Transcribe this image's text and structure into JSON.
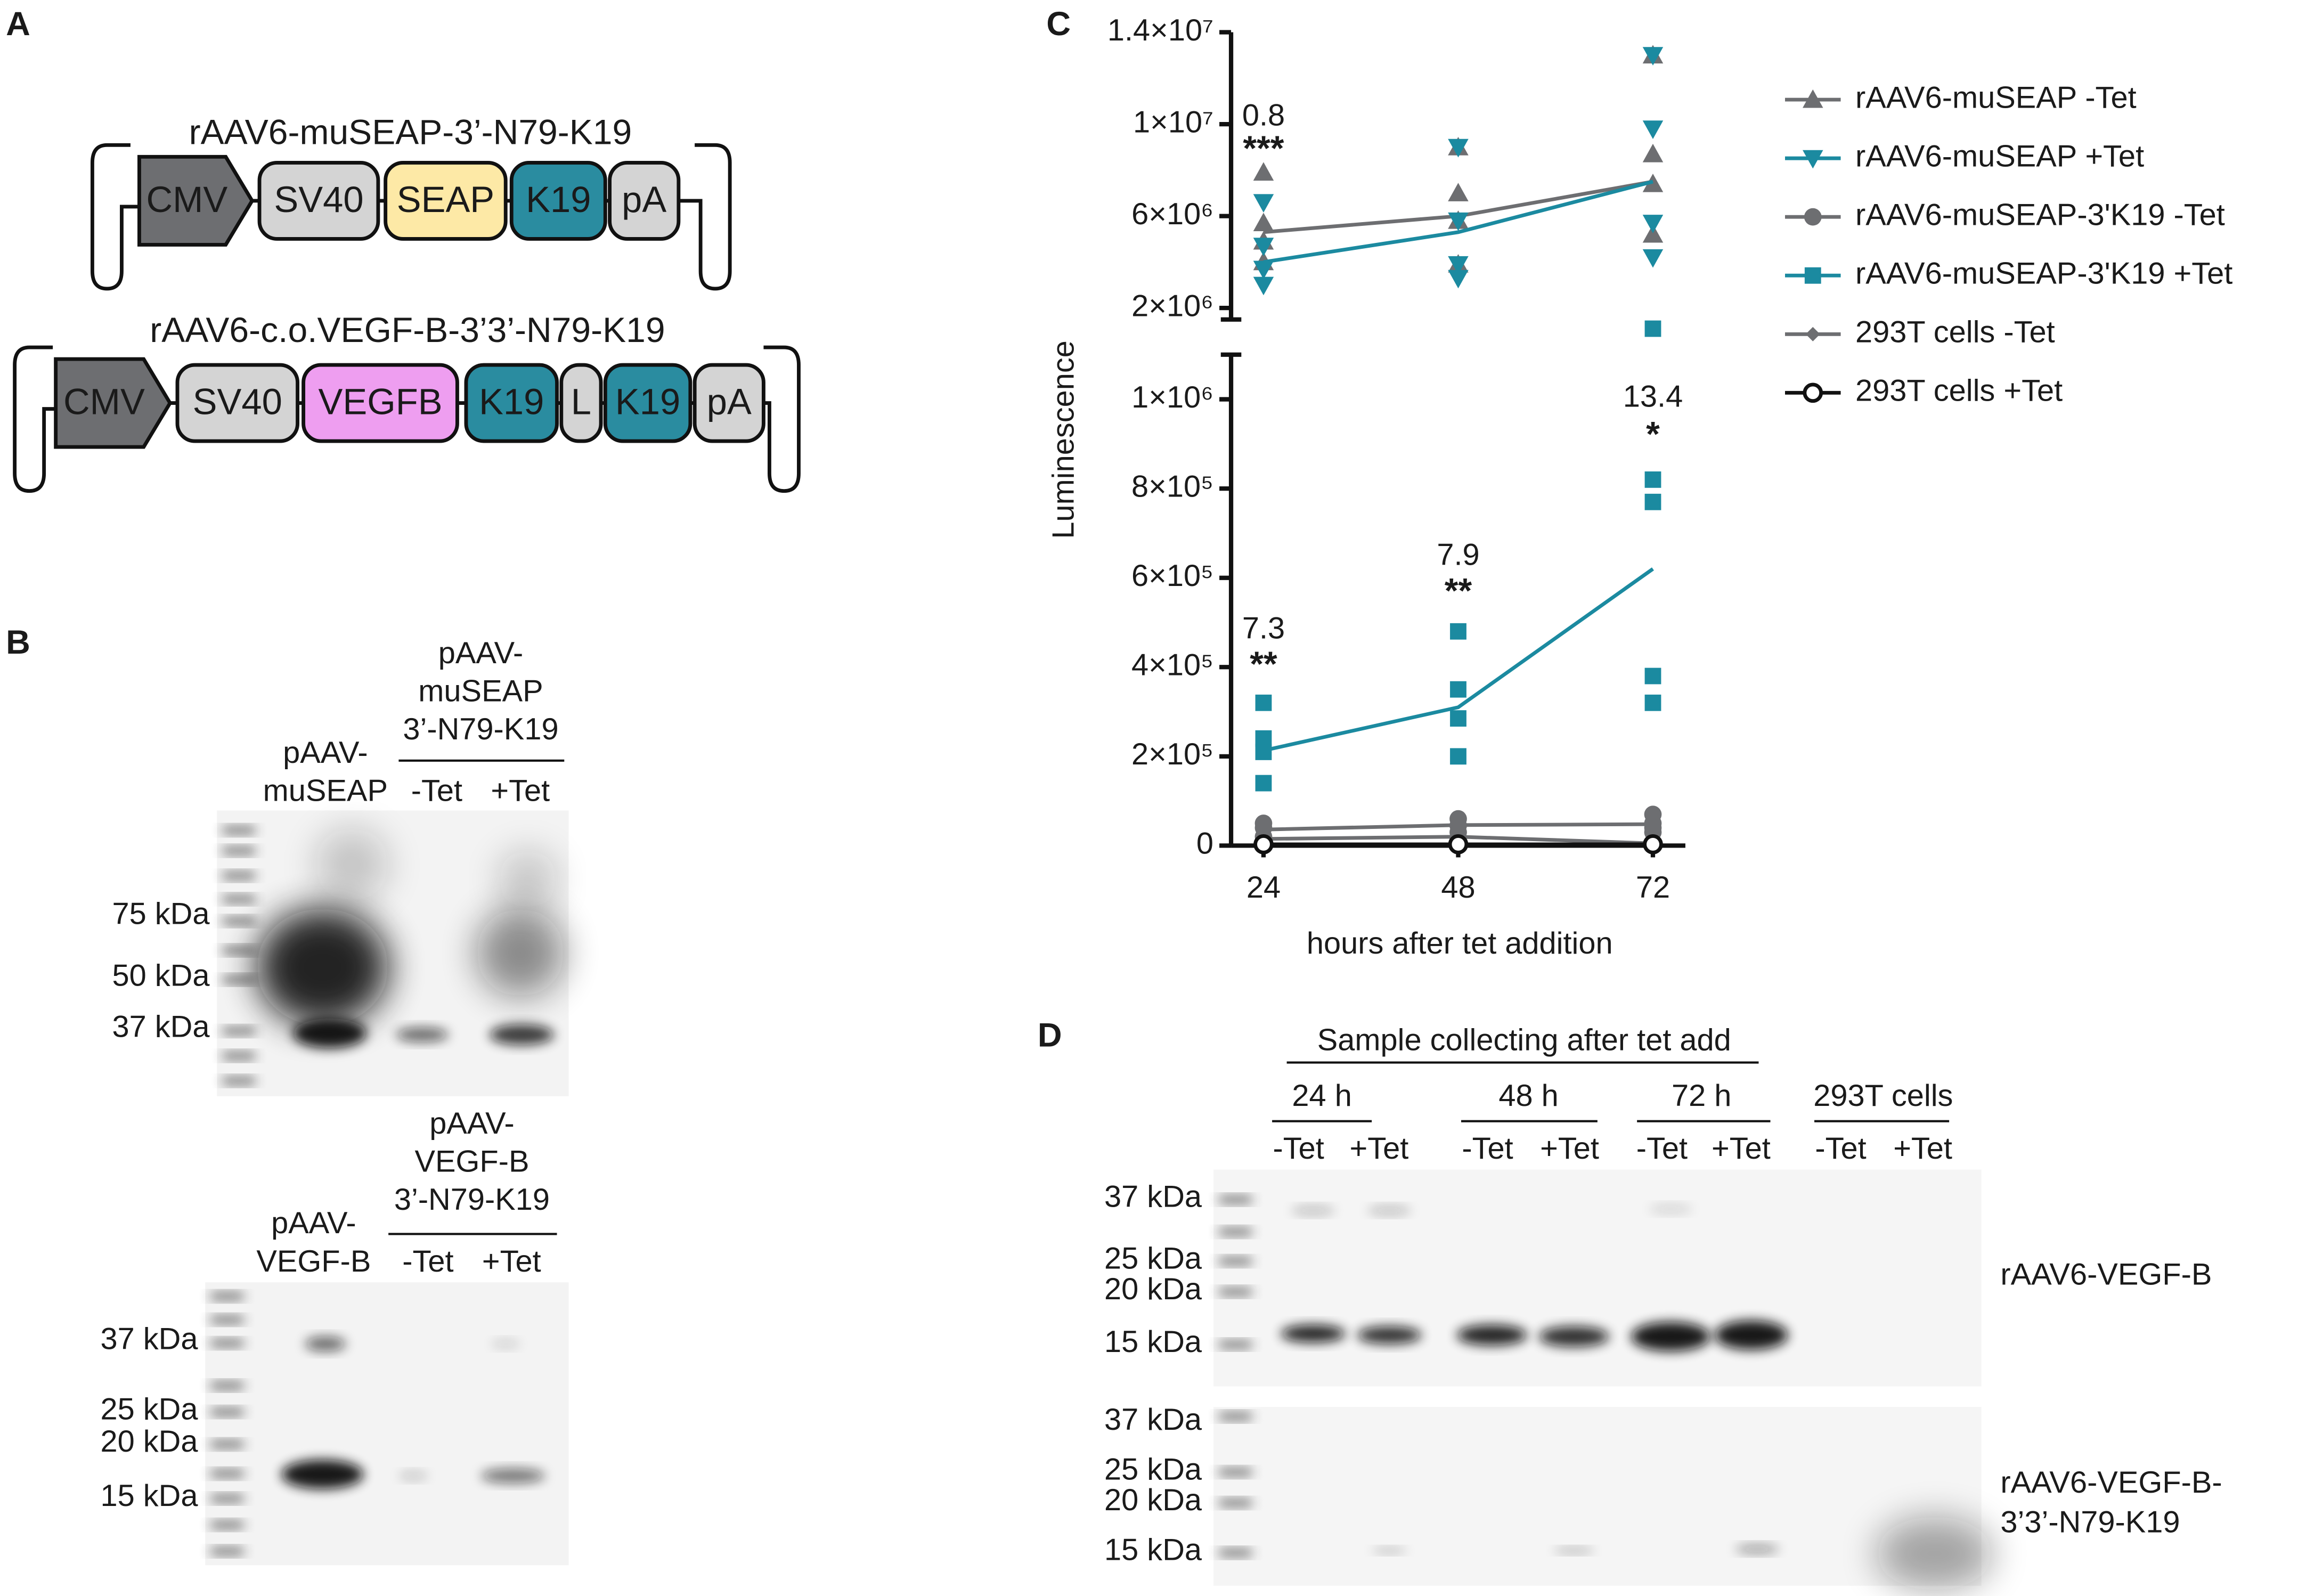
{
  "panel_a": {
    "label": "A",
    "constructs": [
      {
        "title": "rAAV6-muSEAP-3’-N79-K19",
        "elements": [
          "CMV",
          "SV40",
          "SEAP",
          "K19",
          "pA"
        ]
      },
      {
        "title": "rAAV6-c.o.VEGF-B-3’3’-N79-K19",
        "elements": [
          "CMV",
          "SV40",
          "VEGFB",
          "K19",
          "L",
          "K19",
          "pA"
        ]
      }
    ]
  },
  "panel_b": {
    "label": "B",
    "blots": [
      {
        "lane1": [
          "pAAV-",
          "muSEAP"
        ],
        "group": [
          "pAAV-",
          "muSEAP",
          "3’-N79-K19"
        ],
        "lanes": [
          "-Tet",
          "+Tet"
        ],
        "markers": [
          "75 kDa",
          "50 kDa",
          "37 kDa"
        ]
      },
      {
        "lane1": [
          "pAAV-",
          "VEGF-B"
        ],
        "group": [
          "pAAV-",
          "VEGF-B",
          "3’-N79-K19"
        ],
        "lanes": [
          "-Tet",
          "+Tet"
        ],
        "markers": [
          "37 kDa",
          "25 kDa",
          "20 kDa",
          "15 kDa"
        ]
      }
    ]
  },
  "chart_data": {
    "type": "scatter-line",
    "label": "C",
    "y_label": "Luminescence",
    "x_label": "hours after tet addition",
    "xlim": [
      20,
      76
    ],
    "xticks": [
      24,
      48,
      72
    ],
    "ylim_upper": [
      1500000,
      14000000
    ],
    "yticks_upper": [
      {
        "value": 2000000,
        "label": "2×10⁶"
      },
      {
        "value": 6000000,
        "label": "6×10⁶"
      },
      {
        "value": 10000000,
        "label": "1×10⁷"
      },
      {
        "value": 14000000,
        "label": "1.4×10⁷"
      }
    ],
    "ylim_lower": [
      0,
      1100000
    ],
    "yticks_lower": [
      0,
      {
        "value": 200000,
        "label": "2×10⁵"
      },
      {
        "value": 400000,
        "label": "4×10⁵"
      },
      {
        "value": 600000,
        "label": "6×10⁵"
      },
      {
        "value": 800000,
        "label": "8×10⁵"
      },
      {
        "value": 1000000,
        "label": "1×10⁶"
      }
    ],
    "series": [
      {
        "name": "rAAV6-muSEAP -Tet",
        "color": "#6d6e71",
        "marker": "triangle-up",
        "x": [
          24,
          48,
          72
        ],
        "values": [
          5300000,
          6000000,
          7500000
        ],
        "replicates": [
          [
            7900000,
            5700000,
            4900000,
            4000000
          ],
          [
            9000000,
            7000000,
            5800000,
            3900000
          ],
          [
            13000000,
            8700000,
            7400000,
            5200000
          ]
        ]
      },
      {
        "name": "rAAV6-muSEAP +Tet",
        "color": "#1b8aa0",
        "marker": "triangle-down",
        "x": [
          24,
          48,
          72
        ],
        "values": [
          4000000,
          5300000,
          7500000
        ],
        "replicates": [
          [
            6600000,
            4700000,
            3700000,
            3000000
          ],
          [
            9000000,
            5800000,
            3900000,
            3300000
          ],
          [
            13000000,
            9800000,
            5700000,
            4200000
          ]
        ]
      },
      {
        "name": "rAAV6-muSEAP-3'K19 -Tet",
        "color": "#6d6e71",
        "marker": "circle",
        "x": [
          24,
          48,
          72
        ],
        "values": [
          36000,
          46000,
          48000
        ],
        "replicates": [
          [
            50000,
            40000,
            20000,
            10000
          ],
          [
            60000,
            45000,
            30000,
            15000
          ],
          [
            70000,
            50000,
            40000,
            30000
          ]
        ]
      },
      {
        "name": "rAAV6-muSEAP-3'K19 +Tet",
        "color": "#1b8aa0",
        "marker": "square",
        "x": [
          24,
          48,
          72
        ],
        "values": [
          213000,
          310000,
          620000
        ],
        "replicates": [
          [
            320000,
            240000,
            210000,
            140000
          ],
          [
            480000,
            350000,
            285000,
            200000
          ],
          [
            1100000,
            820000,
            770000,
            380000,
            320000
          ]
        ]
      },
      {
        "name": "293T cells -Tet",
        "color": "#6d6e71",
        "marker": "diamond",
        "x": [
          24,
          48,
          72
        ],
        "values": [
          15000,
          20000,
          5000
        ],
        "replicates": [
          [
            20000,
            10000
          ],
          [
            25000,
            10000
          ],
          [
            5000,
            2000
          ]
        ]
      },
      {
        "name": "293T cells +Tet",
        "color": "#111111",
        "marker": "open-circle",
        "x": [
          24,
          48,
          72
        ],
        "values": [
          3000,
          3000,
          3000
        ],
        "replicates": [
          [
            3000
          ],
          [
            3000
          ],
          [
            3000
          ]
        ]
      }
    ],
    "annotations": [
      {
        "x": 24,
        "text": "0.8",
        "stars": "***"
      },
      {
        "x": 24,
        "text": "7.3",
        "stars": "**"
      },
      {
        "x": 48,
        "text": "7.9",
        "stars": "**"
      },
      {
        "x": 72,
        "text": "13.4",
        "stars": "*"
      }
    ]
  },
  "panel_d": {
    "label": "D",
    "header": "Sample collecting after tet add",
    "groups": [
      "24 h",
      "48 h",
      "72 h",
      "293T cells"
    ],
    "lanes": [
      "-Tet",
      "+Tet",
      "-Tet",
      "+Tet",
      "-Tet",
      "+Tet",
      "-Tet",
      "+Tet"
    ],
    "blots": [
      {
        "markers": [
          "37 kDa",
          "25 kDa",
          "20 kDa",
          "15 kDa"
        ],
        "name": [
          "rAAV6-VEGF-B"
        ]
      },
      {
        "markers": [
          "37 kDa",
          "25 kDa",
          "20 kDa",
          "15 kDa"
        ],
        "name": [
          "rAAV6-VEGF-B-",
          "3’3’-N79-K19"
        ]
      }
    ]
  }
}
